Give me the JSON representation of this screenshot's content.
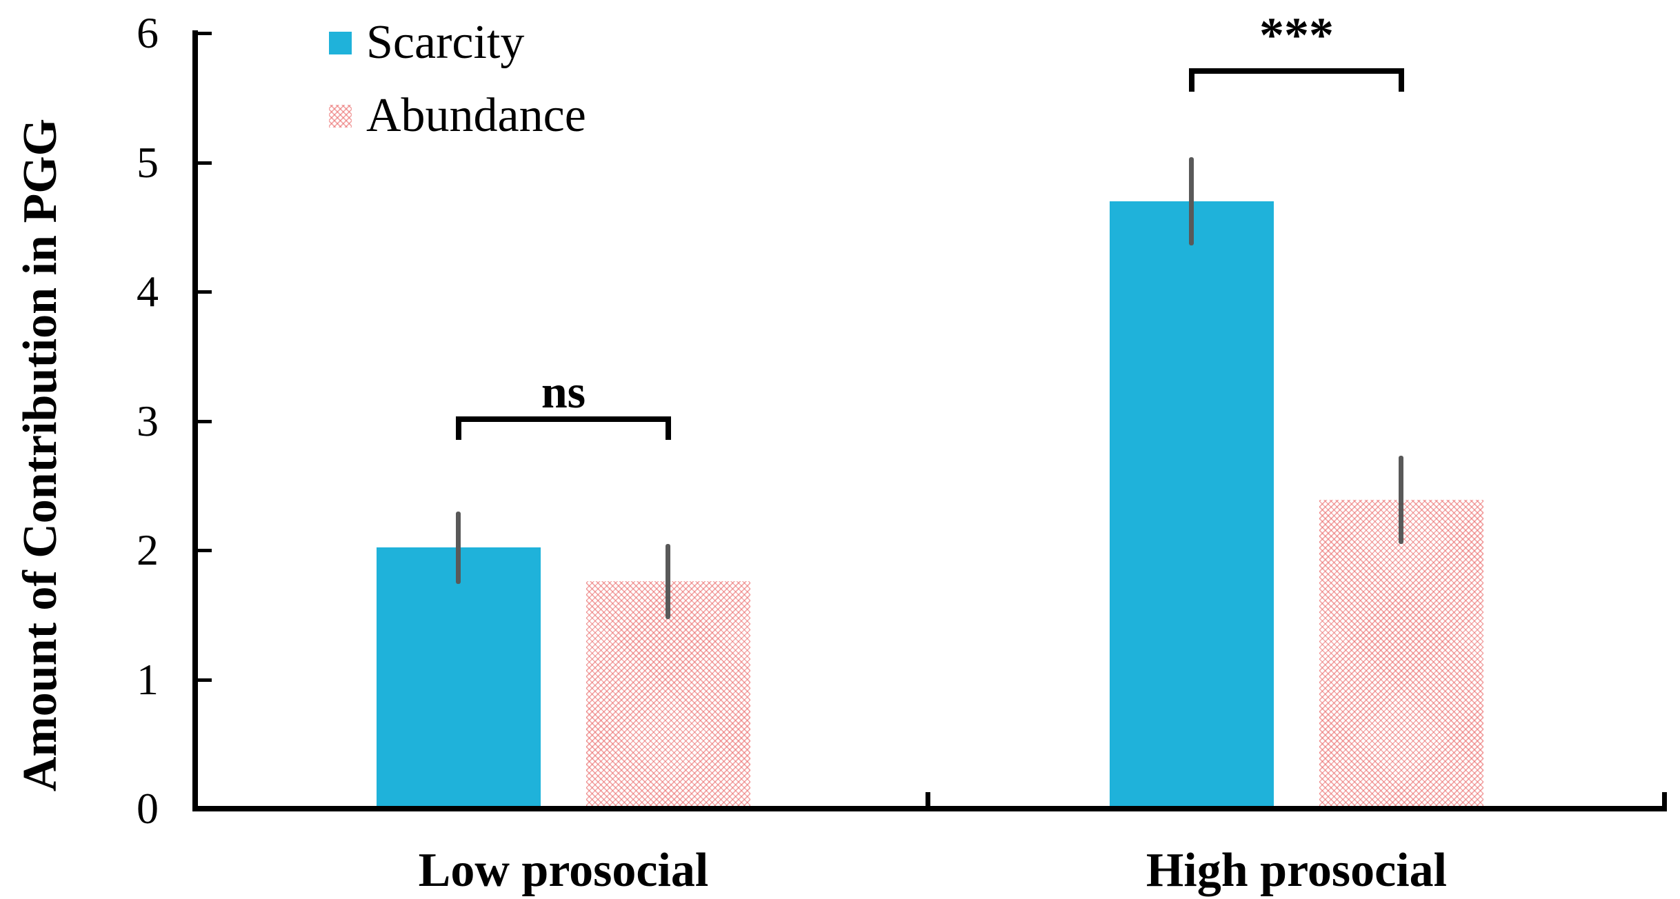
{
  "chart_data": {
    "type": "bar",
    "title": "",
    "ylabel": "Amount of Contribution in PGG",
    "xlabel": "",
    "categories": [
      "Low prosocial",
      "High prosocial"
    ],
    "series": [
      {
        "name": "Scarcity",
        "pattern": "solid",
        "color": "#1FB2DA",
        "values": [
          2.02,
          4.7
        ],
        "errors": [
          0.28,
          0.34
        ]
      },
      {
        "name": "Abundance",
        "pattern": "diagonal-crosshatch",
        "color": "#E96464",
        "values": [
          1.76,
          2.39
        ],
        "errors": [
          0.29,
          0.34
        ]
      }
    ],
    "ylim": [
      0,
      6
    ],
    "yticks": [
      0,
      1,
      2,
      3,
      4,
      5,
      6
    ],
    "grid": false,
    "legend_position": "top-left",
    "error_bar_color": "#595959",
    "significance": [
      {
        "category": "Low prosocial",
        "label": "ns"
      },
      {
        "category": "High prosocial",
        "label": "***"
      }
    ]
  }
}
